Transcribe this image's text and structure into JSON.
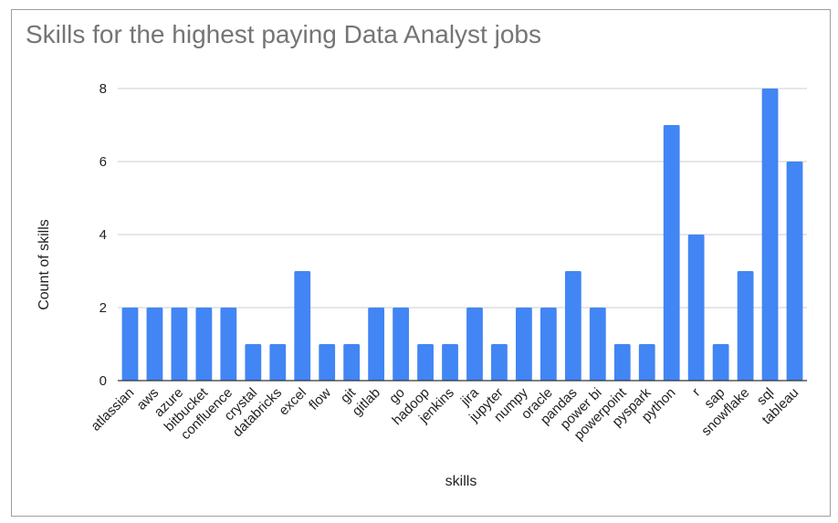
{
  "chart_data": {
    "type": "bar",
    "title": "Skills for the highest paying Data Analyst jobs",
    "xlabel": "skills",
    "ylabel": "Count of skills",
    "ylim": [
      0,
      8
    ],
    "yticks": [
      0,
      2,
      4,
      6,
      8
    ],
    "grid": true,
    "legend": "none",
    "bar_color": "#4285f4",
    "categories": [
      "atlassian",
      "aws",
      "azure",
      "bitbucket",
      "confluence",
      "crystal",
      "databricks",
      "excel",
      "flow",
      "git",
      "gitlab",
      "go",
      "hadoop",
      "jenkins",
      "jira",
      "jupyter",
      "numpy",
      "oracle",
      "pandas",
      "power bi",
      "powerpoint",
      "pyspark",
      "python",
      "r",
      "sap",
      "snowflake",
      "sql",
      "tableau"
    ],
    "values": [
      2,
      2,
      2,
      2,
      2,
      1,
      1,
      3,
      1,
      1,
      2,
      2,
      1,
      1,
      2,
      1,
      2,
      2,
      3,
      2,
      1,
      1,
      7,
      4,
      1,
      3,
      8,
      6
    ]
  }
}
